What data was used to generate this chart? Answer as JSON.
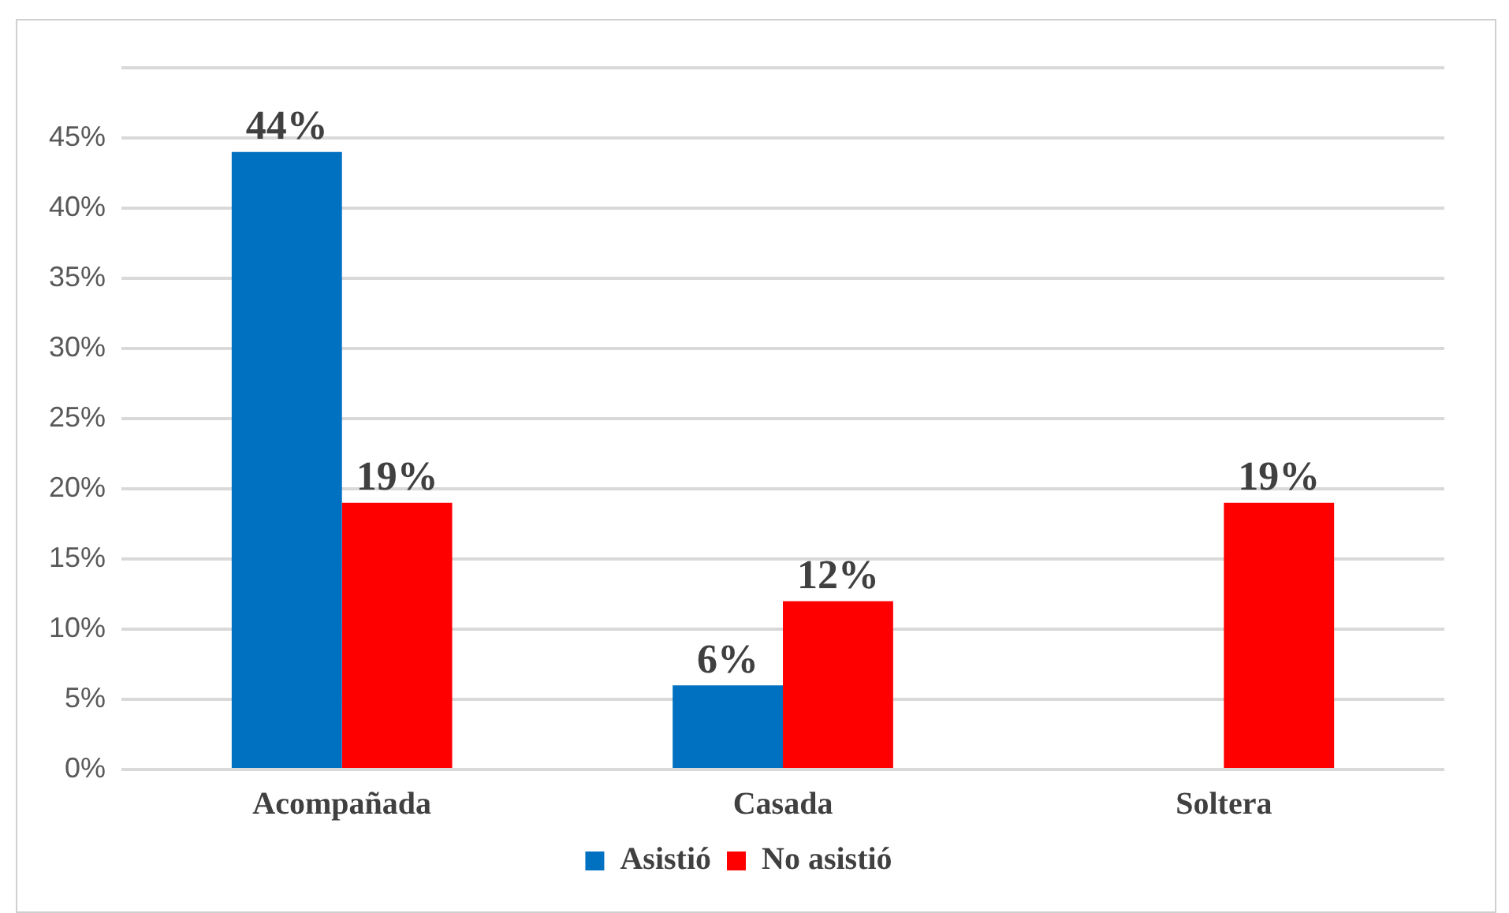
{
  "chart_data": {
    "type": "bar",
    "categories": [
      "Acompañada",
      "Casada",
      "Soltera"
    ],
    "series": [
      {
        "name": "Asistió",
        "color": "#0070c0",
        "values": [
          44,
          6,
          null
        ],
        "value_labels": [
          "44%",
          "6%",
          null
        ]
      },
      {
        "name": "No asistió",
        "color": "#ff0000",
        "values": [
          19,
          12,
          19
        ],
        "value_labels": [
          "19%",
          "12%",
          "19%"
        ]
      }
    ],
    "ylim": [
      0,
      50
    ],
    "yticks": [
      {
        "value": 0,
        "label": "0%"
      },
      {
        "value": 5,
        "label": "5%"
      },
      {
        "value": 10,
        "label": "10%"
      },
      {
        "value": 15,
        "label": "15%"
      },
      {
        "value": 20,
        "label": "20%"
      },
      {
        "value": 25,
        "label": "25%"
      },
      {
        "value": 30,
        "label": "30%"
      },
      {
        "value": 35,
        "label": "35%"
      },
      {
        "value": 40,
        "label": "40%"
      },
      {
        "value": 45,
        "label": "45%"
      },
      {
        "value": 50,
        "label": null
      }
    ],
    "grid": "y",
    "legend": "bottom"
  }
}
